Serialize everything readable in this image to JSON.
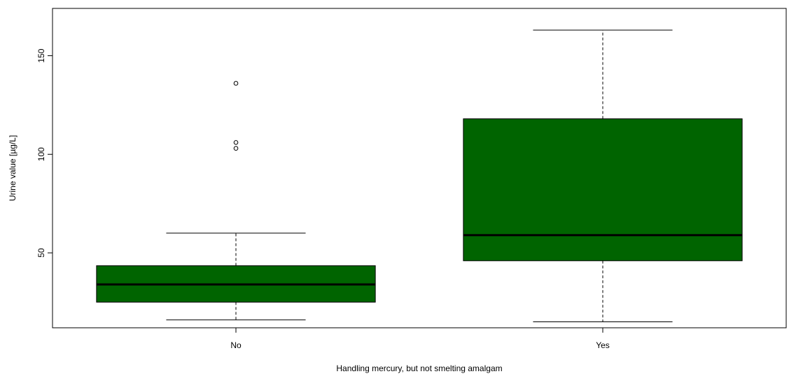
{
  "chart_data": {
    "type": "boxplot",
    "title": "",
    "xlabel": "Handling mercury, but not smelting amalgam",
    "ylabel": "Urine value [µg/L]",
    "ylim": [
      12,
      174
    ],
    "yticks": [
      50,
      100,
      150
    ],
    "categories": [
      "No",
      "Yes"
    ],
    "boxes": [
      {
        "category": "No",
        "whisker_low": 16,
        "q1": 25,
        "median": 34,
        "q3": 43.5,
        "whisker_high": 60,
        "outliers": [
          103,
          106,
          136
        ]
      },
      {
        "category": "Yes",
        "whisker_low": 15,
        "q1": 46,
        "median": 59,
        "q3": 118,
        "whisker_high": 163,
        "outliers": []
      }
    ],
    "box_color": "#006400",
    "grid": false,
    "legend": "none"
  }
}
